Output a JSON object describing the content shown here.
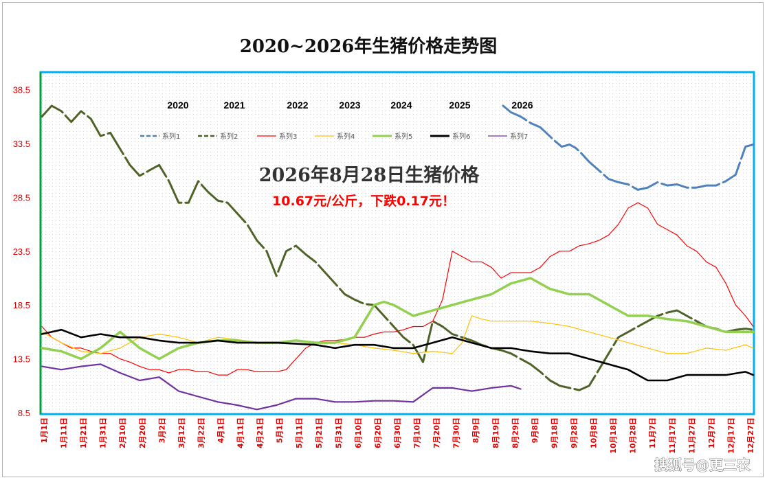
{
  "watermark": "搜狐号@更三农",
  "chart_data": {
    "type": "line",
    "title": "2020~2026年生猪价格走势图",
    "ylim": [
      8.5,
      40.0
    ],
    "yticks": [
      "8.5",
      "13.5",
      "18.5",
      "23.5",
      "28.5",
      "33.5",
      "38.5"
    ],
    "xticks": [
      "1月1日",
      "1月11日",
      "1月21日",
      "1月31日",
      "2月10日",
      "2月20日",
      "3月2日",
      "3月12日",
      "3月22日",
      "4月1日",
      "4月11日",
      "4月21日",
      "5月1日",
      "5月11日",
      "5月21日",
      "5月31日",
      "6月10日",
      "6月20日",
      "6月30日",
      "7月10日",
      "7月20日",
      "7月30日",
      "8月9日",
      "8月19日",
      "8月29日",
      "9月8日",
      "9月18日",
      "9月28日",
      "10月8日",
      "10月18日",
      "10月28日",
      "11月7日",
      "11月17日",
      "11月27日",
      "12月7日",
      "12月17日",
      "12月27日"
    ],
    "years": [
      "2020",
      "2021",
      "2022",
      "2023",
      "2024",
      "2025",
      "2026"
    ],
    "annotation": {
      "line1": "2026年8月28日生猪价格",
      "line2": "10.67元/公斤，下跌0.17元！"
    },
    "legend": {
      "placement": "top"
    },
    "grid": "dotted",
    "series": [
      {
        "name": "系列1",
        "color": "#4f81bd",
        "dash": "dashed",
        "x": [
          236,
          240,
          245,
          250,
          255,
          258,
          262,
          266,
          270,
          273,
          276,
          280,
          285,
          290,
          295,
          300,
          305,
          310,
          315,
          320,
          325,
          330,
          335,
          340,
          345,
          350,
          355,
          360,
          364
        ],
        "y": [
          37.0,
          36.4,
          36.0,
          35.4,
          35.0,
          34.5,
          33.8,
          33.2,
          33.4,
          33.1,
          32.6,
          31.8,
          31.0,
          30.2,
          29.9,
          29.7,
          29.2,
          29.4,
          29.9,
          29.6,
          29.7,
          29.4,
          29.4,
          29.6,
          29.6,
          30.0,
          30.6,
          33.2,
          33.4
        ]
      },
      {
        "name": "系列2",
        "color": "#4f6228",
        "dash": "dashed",
        "x": [
          0,
          5,
          10,
          15,
          20,
          25,
          30,
          35,
          40,
          45,
          50,
          55,
          60,
          65,
          70,
          75,
          80,
          85,
          90,
          95,
          100,
          105,
          110,
          115,
          120,
          125,
          130,
          135,
          140,
          145,
          150,
          155,
          160,
          165,
          170,
          175,
          180,
          185,
          190,
          195,
          200,
          205,
          210,
          215,
          220,
          225,
          230,
          235,
          240,
          245,
          250,
          255,
          260,
          265,
          270,
          275,
          280,
          285,
          290,
          295,
          300,
          305,
          310,
          315,
          320,
          325,
          330,
          335,
          340,
          345,
          350,
          355,
          360,
          364
        ],
        "y": [
          36.0,
          37.0,
          36.5,
          35.5,
          36.5,
          35.8,
          34.2,
          34.5,
          33.0,
          31.5,
          30.5,
          31.0,
          31.5,
          30.0,
          28.0,
          28.0,
          30.0,
          29.0,
          28.2,
          28.0,
          27.0,
          26.0,
          24.5,
          23.5,
          21.2,
          23.5,
          24.0,
          23.2,
          22.5,
          21.5,
          20.5,
          19.5,
          19.0,
          18.6,
          18.5,
          17.5,
          16.5,
          15.5,
          14.8,
          13.2,
          17.0,
          16.5,
          15.8,
          15.5,
          15.2,
          14.8,
          14.5,
          14.3,
          14.0,
          13.5,
          13.0,
          12.3,
          11.5,
          11.0,
          10.8,
          10.6,
          11.0,
          12.5,
          14.0,
          15.5,
          16.0,
          16.5,
          17.0,
          17.5,
          17.8,
          18.0,
          17.5,
          17.0,
          16.5,
          16.3,
          16.0,
          16.2,
          16.3,
          16.2
        ]
      },
      {
        "name": "系列3",
        "color": "#ff0000",
        "dash": "solid",
        "x": [
          0,
          5,
          10,
          15,
          20,
          25,
          30,
          35,
          40,
          45,
          50,
          55,
          60,
          65,
          70,
          75,
          80,
          85,
          90,
          95,
          100,
          105,
          110,
          115,
          120,
          125,
          130,
          135,
          140,
          145,
          150,
          155,
          160,
          165,
          170,
          175,
          180,
          185,
          190,
          195,
          200,
          205,
          210,
          215,
          220,
          225,
          230,
          235,
          240,
          245,
          250,
          255,
          260,
          265,
          270,
          275,
          280,
          285,
          290,
          295,
          300,
          305,
          310,
          315,
          320,
          325,
          330,
          335,
          340,
          345,
          350,
          355,
          360,
          364
        ],
        "y": [
          16.5,
          15.5,
          15.0,
          14.5,
          14.5,
          14.2,
          14.0,
          14.0,
          13.5,
          13.2,
          12.8,
          12.5,
          12.5,
          12.2,
          12.5,
          12.5,
          12.3,
          12.3,
          12.0,
          12.0,
          12.5,
          12.5,
          12.3,
          12.3,
          12.3,
          12.5,
          13.5,
          14.5,
          15.0,
          15.2,
          15.2,
          15.3,
          15.5,
          15.5,
          15.8,
          16.0,
          16.0,
          16.2,
          16.5,
          16.5,
          17.0,
          19.0,
          23.5,
          23.0,
          22.5,
          22.5,
          22.0,
          21.0,
          21.5,
          21.5,
          21.5,
          22.0,
          23.0,
          23.5,
          23.5,
          24.0,
          24.2,
          24.5,
          25.0,
          26.0,
          27.5,
          28.0,
          27.5,
          26.0,
          25.5,
          25.0,
          24.0,
          23.5,
          22.5,
          22.0,
          20.5,
          18.5,
          17.5,
          16.5
        ]
      },
      {
        "name": "系列4",
        "color": "#ffc000",
        "dash": "solid",
        "x": [
          0,
          10,
          20,
          30,
          40,
          50,
          60,
          70,
          80,
          90,
          100,
          110,
          120,
          130,
          140,
          150,
          160,
          170,
          180,
          190,
          200,
          210,
          215,
          220,
          225,
          230,
          240,
          250,
          260,
          270,
          280,
          290,
          300,
          310,
          320,
          330,
          340,
          350,
          360,
          364
        ],
        "y": [
          16.0,
          15.0,
          14.2,
          14.0,
          14.5,
          15.5,
          15.8,
          15.5,
          15.0,
          15.5,
          15.3,
          15.0,
          15.0,
          15.2,
          15.0,
          15.0,
          14.8,
          14.5,
          14.3,
          14.0,
          14.2,
          14.0,
          15.0,
          17.5,
          17.2,
          17.0,
          17.0,
          17.0,
          16.8,
          16.5,
          16.0,
          15.5,
          15.0,
          14.5,
          14.0,
          14.0,
          14.5,
          14.3,
          14.8,
          14.5
        ]
      },
      {
        "name": "系列5",
        "color": "#92d050",
        "dash": "solid",
        "x": [
          0,
          10,
          20,
          30,
          40,
          50,
          60,
          70,
          80,
          90,
          100,
          110,
          120,
          130,
          140,
          150,
          160,
          165,
          170,
          175,
          180,
          185,
          190,
          200,
          210,
          220,
          230,
          240,
          250,
          260,
          270,
          280,
          290,
          300,
          310,
          320,
          330,
          340,
          350,
          360,
          364
        ],
        "y": [
          14.5,
          14.2,
          13.5,
          14.5,
          16.0,
          14.5,
          13.5,
          14.5,
          15.0,
          15.2,
          15.2,
          15.0,
          15.0,
          15.2,
          15.0,
          15.0,
          15.5,
          17.0,
          18.5,
          18.8,
          18.5,
          18.0,
          17.5,
          18.0,
          18.5,
          19.0,
          19.5,
          20.5,
          21.0,
          20.0,
          19.5,
          19.5,
          18.5,
          17.5,
          17.5,
          17.2,
          17.0,
          16.5,
          16.0,
          16.0,
          16.0
        ]
      },
      {
        "name": "系列6",
        "color": "#000000",
        "dash": "solid",
        "x": [
          0,
          10,
          20,
          30,
          40,
          50,
          60,
          70,
          80,
          90,
          100,
          110,
          120,
          130,
          140,
          150,
          160,
          170,
          180,
          190,
          200,
          210,
          220,
          230,
          240,
          250,
          260,
          270,
          280,
          290,
          300,
          310,
          320,
          330,
          340,
          350,
          360,
          364
        ],
        "y": [
          15.8,
          16.2,
          15.5,
          15.8,
          15.5,
          15.5,
          15.2,
          15.0,
          15.0,
          15.2,
          15.0,
          15.0,
          15.0,
          14.9,
          14.8,
          14.5,
          14.8,
          14.8,
          14.5,
          14.5,
          15.0,
          15.5,
          15.0,
          14.5,
          14.5,
          14.2,
          14.0,
          14.0,
          13.5,
          13.0,
          12.5,
          11.5,
          11.5,
          12.0,
          12.0,
          12.0,
          12.3,
          12.0
        ]
      },
      {
        "name": "系列7",
        "color": "#7030a0",
        "dash": "solid",
        "x": [
          0,
          10,
          20,
          30,
          40,
          50,
          60,
          70,
          80,
          90,
          100,
          105,
          110,
          120,
          130,
          140,
          150,
          160,
          170,
          180,
          190,
          200,
          210,
          220,
          230,
          240,
          245
        ],
        "y": [
          12.8,
          12.5,
          12.8,
          13.0,
          12.2,
          11.5,
          11.8,
          10.5,
          10.0,
          9.5,
          9.2,
          9.0,
          8.8,
          9.2,
          9.8,
          9.8,
          9.5,
          9.5,
          9.6,
          9.6,
          9.5,
          10.8,
          10.8,
          10.5,
          10.8,
          11.0,
          10.7
        ]
      }
    ]
  }
}
